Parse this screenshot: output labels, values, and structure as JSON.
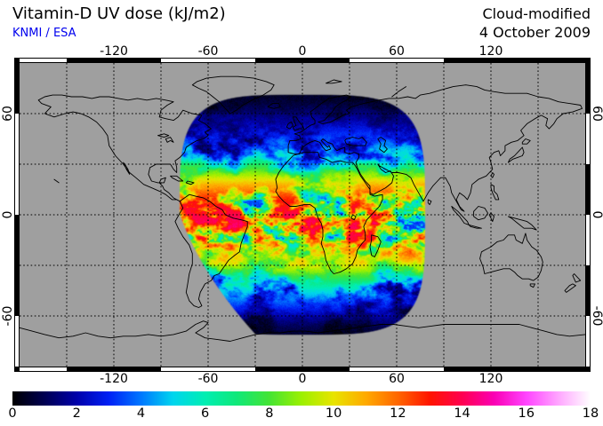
{
  "header": {
    "title": "Vitamin-D UV dose (kJ/m2)",
    "source": "KNMI / ESA",
    "source_color": "#0000ee",
    "mode": "Cloud-modified",
    "date": "4 October 2009"
  },
  "map": {
    "lon_ticks": [
      -120,
      -60,
      0,
      60,
      120
    ],
    "lat_ticks": [
      60,
      0,
      -60
    ],
    "lon_range": [
      -180,
      180
    ],
    "lat_range": [
      -90,
      90
    ],
    "grid_step_deg": 30,
    "background_color": "#9f9f9f"
  },
  "colorbar": {
    "min": 0,
    "max": 18,
    "unit": "kJ/m2",
    "tick_values": [
      0,
      2,
      4,
      6,
      8,
      10,
      12,
      14,
      16,
      18
    ],
    "stops": [
      "#000000",
      "#000052",
      "#0000aa",
      "#0020f5",
      "#0077ff",
      "#00d5ee",
      "#00eeb2",
      "#10e878",
      "#44e434",
      "#9cf000",
      "#e8e400",
      "#ffaa00",
      "#ff6600",
      "#ff1400",
      "#ff0050",
      "#fa00b4",
      "#ff44ff",
      "#ffa6ff",
      "#ffffff"
    ]
  },
  "chart_data": {
    "type": "heatmap",
    "title": "Vitamin-D UV dose (kJ/m2)",
    "subtitle": "Cloud-modified",
    "date": "4 October 2009",
    "provider": "KNMI / ESA",
    "units": "kJ/m2",
    "projection": "equirectangular",
    "value_range": [
      0,
      18
    ],
    "lon_axis_ticks": [
      -120,
      -60,
      0,
      60,
      120
    ],
    "lat_axis_ticks": [
      60,
      0,
      -60
    ],
    "grid_interval_deg": 30,
    "swath": {
      "lon_half_extent_deg": 78.5,
      "lat_half_extent_deg": 71.5,
      "shape_exponent": 4,
      "west_cut_south_linear": 0.38,
      "west_cut_south_quadratic": 0.0042
    },
    "clear_sky_lat_profile": [
      [
        72,
        0.35
      ],
      [
        66,
        0.8
      ],
      [
        60,
        1.5
      ],
      [
        54,
        2.3
      ],
      [
        48,
        3.2
      ],
      [
        42,
        4.3
      ],
      [
        36,
        5.7
      ],
      [
        30,
        7.2
      ],
      [
        24,
        9.0
      ],
      [
        18,
        10.8
      ],
      [
        12,
        12.3
      ],
      [
        6,
        13.4
      ],
      [
        0,
        13.9
      ],
      [
        -6,
        14.1
      ],
      [
        -12,
        13.9
      ],
      [
        -18,
        13.3
      ],
      [
        -24,
        11.8
      ],
      [
        -30,
        10.0
      ],
      [
        -36,
        8.0
      ],
      [
        -42,
        6.3
      ],
      [
        -48,
        4.7
      ],
      [
        -54,
        3.3
      ],
      [
        -60,
        2.1
      ],
      [
        -66,
        1.1
      ],
      [
        -72,
        0.45
      ]
    ],
    "high_dose_spots": [
      {
        "lon": -33,
        "lat": -4,
        "amp": 2.6
      },
      {
        "lon": -66,
        "lat": -22,
        "amp": 2.6
      },
      {
        "lon": -44,
        "lat": -11,
        "amp": 1.4
      }
    ]
  }
}
